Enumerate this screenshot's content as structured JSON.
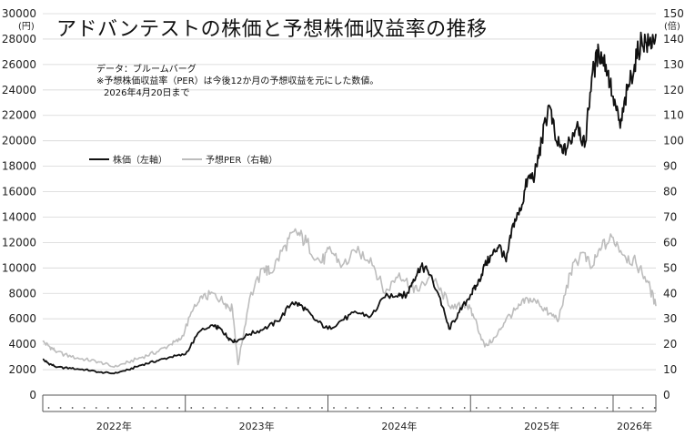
{
  "title": "アドバンテストの株価と予想株価収益率の推移",
  "notes": {
    "source": "データ：ブルームバーグ",
    "footnote": "※予想株価収益率（PER）は今後12か月の予想収益を元にした数値。",
    "date": "2026年4月20日まで"
  },
  "units": {
    "left": "(円)",
    "right": "(倍)"
  },
  "chart_data": {
    "type": "line",
    "title": "アドバンテストの株価と予想株価収益率の推移",
    "xlabel": "",
    "categories": [
      "2022年",
      "2023年",
      "2024年",
      "2025年",
      "2026年"
    ],
    "left_axis": {
      "ylim": [
        0,
        30000
      ],
      "ticks": [
        0,
        2000,
        4000,
        6000,
        8000,
        10000,
        12000,
        14000,
        16000,
        18000,
        20000,
        22000,
        24000,
        26000,
        28000,
        30000
      ]
    },
    "right_axis": {
      "ylim": [
        0,
        150
      ],
      "ticks": [
        0,
        10,
        20,
        30,
        40,
        50,
        60,
        70,
        80,
        90,
        100,
        110,
        120,
        130,
        140,
        150
      ]
    },
    "x_range": [
      2022.0,
      2026.3
    ],
    "grid": true,
    "legend": "upper-left",
    "series": [
      {
        "name": "株価（左軸）",
        "axis": "left",
        "color": "#111111",
        "x": [
          2022.0,
          2022.04,
          2022.1,
          2022.2,
          2022.3,
          2022.4,
          2022.5,
          2022.6,
          2022.7,
          2022.8,
          2022.9,
          2023.0,
          2023.1,
          2023.2,
          2023.25,
          2023.3,
          2023.35,
          2023.45,
          2023.55,
          2023.65,
          2023.75,
          2023.82,
          2023.9,
          2024.0,
          2024.1,
          2024.2,
          2024.3,
          2024.4,
          2024.5,
          2024.55,
          2024.6,
          2024.65,
          2024.7,
          2024.78,
          2024.85,
          2024.92,
          2025.0,
          2025.05,
          2025.1,
          2025.15,
          2025.2,
          2025.25,
          2025.3,
          2025.35,
          2025.4,
          2025.45,
          2025.5,
          2025.55,
          2025.6,
          2025.65,
          2025.7,
          2025.75,
          2025.8,
          2025.85,
          2025.9,
          2025.95,
          2026.0,
          2026.05,
          2026.1,
          2026.15,
          2026.2,
          2026.25,
          2026.3
        ],
        "values": [
          2800,
          2500,
          2200,
          2100,
          2000,
          1800,
          1700,
          2000,
          2400,
          2700,
          3000,
          3200,
          5000,
          5400,
          5200,
          4500,
          4200,
          4800,
          5200,
          5800,
          7300,
          7000,
          6000,
          5200,
          5900,
          6500,
          6200,
          7700,
          8000,
          7800,
          9100,
          10100,
          9800,
          7800,
          5200,
          6500,
          7900,
          8700,
          10200,
          11000,
          11800,
          10500,
          13500,
          14500,
          17000,
          17300,
          20000,
          22800,
          20000,
          19000,
          20000,
          21500,
          19500,
          25000,
          27000,
          26000,
          23500,
          21000,
          24000,
          26000,
          28000,
          27500,
          28400
        ]
      },
      {
        "name": "予想PER（右軸）",
        "axis": "right",
        "color": "#bdbdbd",
        "x": [
          2022.0,
          2022.05,
          2022.1,
          2022.2,
          2022.3,
          2022.4,
          2022.5,
          2022.6,
          2022.7,
          2022.8,
          2022.9,
          2022.97,
          2023.05,
          2023.12,
          2023.2,
          2023.28,
          2023.33,
          2023.37,
          2023.45,
          2023.55,
          2023.6,
          2023.7,
          2023.78,
          2023.85,
          2023.95,
          2024.02,
          2024.1,
          2024.2,
          2024.3,
          2024.4,
          2024.5,
          2024.58,
          2024.63,
          2024.72,
          2024.8,
          2024.88,
          2024.97,
          2025.03,
          2025.1,
          2025.18,
          2025.25,
          2025.33,
          2025.4,
          2025.48,
          2025.55,
          2025.62,
          2025.7,
          2025.78,
          2025.85,
          2025.92,
          2026.0,
          2026.08,
          2026.16,
          2026.24,
          2026.3
        ],
        "values": [
          21,
          19,
          17,
          15,
          14,
          13,
          11,
          13,
          15,
          17,
          20,
          22,
          33,
          38,
          40,
          36,
          34,
          12,
          38,
          50,
          48,
          59,
          64,
          60,
          52,
          57,
          51,
          56,
          54,
          40,
          48,
          43,
          41,
          47,
          40,
          34,
          36,
          30,
          19,
          23,
          30,
          34,
          38,
          36,
          32,
          30,
          48,
          56,
          50,
          58,
          62,
          55,
          52,
          45,
          35
        ]
      }
    ]
  }
}
